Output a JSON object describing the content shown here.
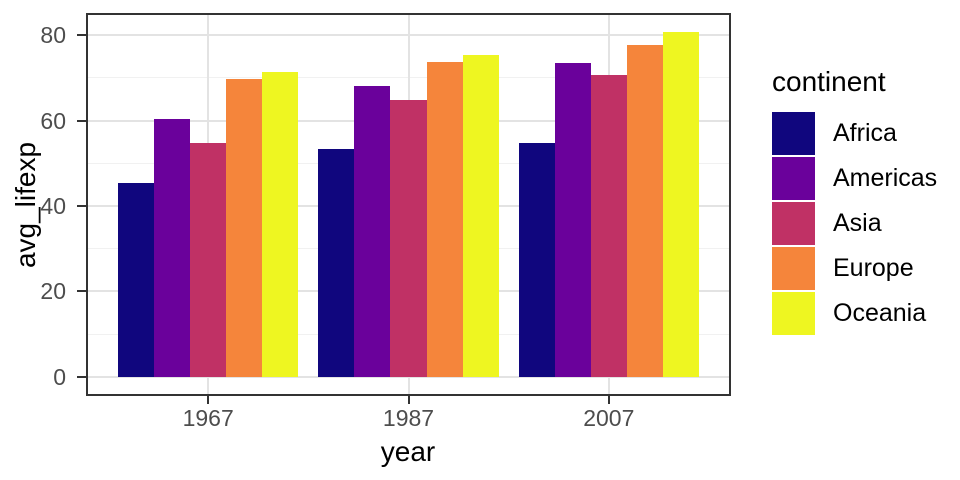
{
  "chart_data": {
    "type": "bar",
    "bar_layout": "dodged",
    "title": "",
    "xlabel": "year",
    "ylabel": "avg_lifexp",
    "categories": [
      "1967",
      "1987",
      "2007"
    ],
    "series": [
      {
        "name": "Africa",
        "color": "#10067E",
        "values": [
          45.33,
          53.34,
          54.81
        ]
      },
      {
        "name": "Americas",
        "color": "#6A019B",
        "values": [
          60.41,
          68.09,
          73.61
        ]
      },
      {
        "name": "Asia",
        "color": "#C03165",
        "values": [
          54.66,
          64.85,
          70.73
        ]
      },
      {
        "name": "Europe",
        "color": "#F5853B",
        "values": [
          69.74,
          73.64,
          77.65
        ]
      },
      {
        "name": "Oceania",
        "color": "#EEF621",
        "values": [
          71.31,
          75.32,
          80.72
        ]
      }
    ],
    "y_ticks": [
      0,
      20,
      40,
      60,
      80
    ],
    "y_minor_ticks": [
      10,
      30,
      50,
      70
    ],
    "ylim": [
      -4.04,
      84.76
    ],
    "legend": {
      "title": "continent",
      "position": "right"
    },
    "grid": "horizontal major+minor, vertical major at group centers"
  },
  "style": {
    "background": "#FFFFFF",
    "panel_border_color": "#333333",
    "grid_major_color": "#E3E3E3",
    "grid_minor_color": "#F1F1F1",
    "tick_color": "#333333",
    "axis_text_color": "#4D4D4D",
    "title_text_color": "#000000"
  }
}
